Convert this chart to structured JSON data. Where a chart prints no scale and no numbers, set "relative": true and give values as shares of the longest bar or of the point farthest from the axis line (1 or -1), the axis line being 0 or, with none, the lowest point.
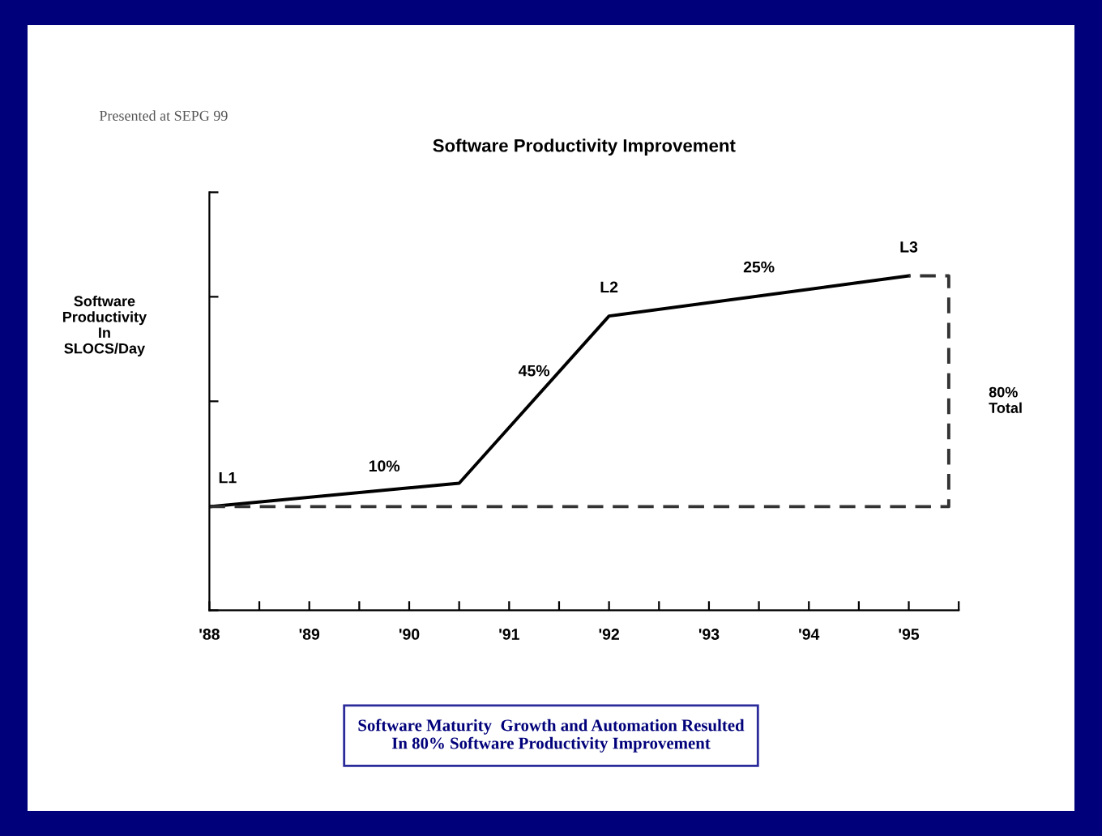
{
  "chart_data": {
    "type": "line",
    "title": "Software Productivity Improvement",
    "ylabel": "Software\nProductivity\nIn\nSLOCS/Day",
    "relative": true,
    "x": [
      1988,
      1990.5,
      1992,
      1995
    ],
    "series": [
      {
        "color": "#000000",
        "values": [
          0.31,
          0.38,
          0.88,
          1.0
        ]
      },
      {
        "color": "#333333",
        "type": "line",
        "line_style": "dashed",
        "x": [
          1988,
          1995.4,
          1995.4,
          1995
        ],
        "values": [
          0.31,
          0.31,
          1.0,
          1.0
        ]
      }
    ],
    "xlim": [
      1988,
      1995.5
    ],
    "xticks": [
      {
        "value": 1988,
        "label": "'88"
      },
      {
        "value": 1988.5,
        "label": null
      },
      {
        "value": 1989,
        "label": "'89"
      },
      {
        "value": 1989.5,
        "label": null
      },
      {
        "value": 1990,
        "label": "'90"
      },
      {
        "value": 1990.5,
        "label": null
      },
      {
        "value": 1991,
        "label": "'91"
      },
      {
        "value": 1991.5,
        "label": null
      },
      {
        "value": 1992,
        "label": "'92"
      },
      {
        "value": 1992.5,
        "label": null
      },
      {
        "value": 1993,
        "label": "'93"
      },
      {
        "value": 1993.5,
        "label": null
      },
      {
        "value": 1994,
        "label": "'94"
      },
      {
        "value": 1994.5,
        "label": null
      },
      {
        "value": 1995,
        "label": "'95"
      },
      {
        "value": 1995.5,
        "label": null
      }
    ],
    "grid": false,
    "legend": false,
    "marker": "none",
    "line_style": "solid",
    "annotations": [
      {
        "text": "L1",
        "x": 1988,
        "y": 0.31
      },
      {
        "text": "10%",
        "x": 1989.75,
        "y": 0.345
      },
      {
        "text": "45%",
        "x": 1991.25,
        "y": 0.63
      },
      {
        "text": "L2",
        "x": 1992,
        "y": 0.88
      },
      {
        "text": "25%",
        "x": 1993.5,
        "y": 0.94
      },
      {
        "text": "L3",
        "x": 1995,
        "y": 1.0
      },
      "80%\nTotal",
      "Software Maturity  Growth and Automation Resulted\nIn 80% Software Productivity Improvement",
      "Presented at SEPG 99"
    ]
  }
}
